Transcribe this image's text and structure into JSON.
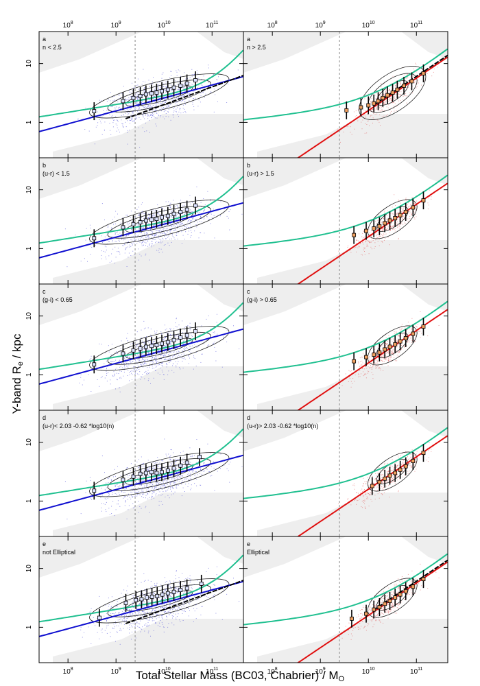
{
  "figure": {
    "xlabel": "Total Stellar Mass (BC03, Chabrier) / M",
    "xlabel_sub": "O",
    "ylabel": "Y-band   R",
    "ylabel_sub": "e",
    "ylabel_unit": " / kpc"
  },
  "colors": {
    "blue_points": "#3b3bd6",
    "red_points": "#e04040",
    "blue_fit": "#1010d0",
    "red_fit": "#e01010",
    "green_fit": "#20c090",
    "black_fit": "#000000",
    "shade": "#eeeeee",
    "marker_fill": "#f0a060"
  },
  "chart_data": {
    "type": "scatter",
    "xscale": "log",
    "yscale": "log",
    "xlim": [
      25000000,
      450000000000
    ],
    "ylim": [
      0.25,
      35
    ],
    "x_ticks": [
      "10^8",
      "10^9",
      "10^10",
      "10^11"
    ],
    "x_tick_values": [
      100000000,
      1000000000,
      10000000000,
      100000000000
    ],
    "y_ticks": [
      "1",
      "10"
    ],
    "y_tick_values": [
      1,
      10
    ],
    "mass_limit_x": 2500000000,
    "panels": [
      {
        "row": 0,
        "col": 0,
        "letter": "a",
        "label": "n < 2.5",
        "side": "blue",
        "black_fit": true,
        "bins": [
          {
            "x": 350000000,
            "y": 1.55
          },
          {
            "x": 1400000000,
            "y": 2.3
          },
          {
            "x": 2300000000,
            "y": 2.6
          },
          {
            "x": 3200000000,
            "y": 2.8
          },
          {
            "x": 4200000000,
            "y": 3.0
          },
          {
            "x": 5500000000,
            "y": 3.1
          },
          {
            "x": 7000000000,
            "y": 3.2
          },
          {
            "x": 9000000000,
            "y": 3.4
          },
          {
            "x": 12000000000,
            "y": 3.6
          },
          {
            "x": 16000000000,
            "y": 3.9
          },
          {
            "x": 22000000000,
            "y": 4.2
          },
          {
            "x": 30000000000,
            "y": 4.6
          },
          {
            "x": 45000000000,
            "y": 5.2
          }
        ]
      },
      {
        "row": 0,
        "col": 1,
        "letter": "a",
        "label": "n > 2.5",
        "side": "red",
        "black_fit": true,
        "bins": [
          {
            "x": 3500000000,
            "y": 1.6
          },
          {
            "x": 7000000000,
            "y": 1.8
          },
          {
            "x": 10000000000,
            "y": 1.95
          },
          {
            "x": 13000000000,
            "y": 2.1
          },
          {
            "x": 16000000000,
            "y": 2.3
          },
          {
            "x": 20000000000,
            "y": 2.6
          },
          {
            "x": 25000000000,
            "y": 2.9
          },
          {
            "x": 32000000000,
            "y": 3.2
          },
          {
            "x": 40000000000,
            "y": 3.6
          },
          {
            "x": 55000000000,
            "y": 4.2
          },
          {
            "x": 80000000000,
            "y": 5.0
          },
          {
            "x": 140000000000,
            "y": 6.8
          }
        ]
      },
      {
        "row": 1,
        "col": 0,
        "letter": "b",
        "label": "(u-r) < 1.5",
        "side": "blue",
        "black_fit": false,
        "bins": [
          {
            "x": 350000000,
            "y": 1.5
          },
          {
            "x": 1400000000,
            "y": 2.3
          },
          {
            "x": 2300000000,
            "y": 2.6
          },
          {
            "x": 3200000000,
            "y": 2.8
          },
          {
            "x": 4200000000,
            "y": 3.0
          },
          {
            "x": 5500000000,
            "y": 3.1
          },
          {
            "x": 7000000000,
            "y": 3.2
          },
          {
            "x": 9000000000,
            "y": 3.4
          },
          {
            "x": 12000000000,
            "y": 3.6
          },
          {
            "x": 16000000000,
            "y": 3.9
          },
          {
            "x": 22000000000,
            "y": 4.2
          },
          {
            "x": 30000000000,
            "y": 4.6
          },
          {
            "x": 45000000000,
            "y": 5.4
          }
        ]
      },
      {
        "row": 1,
        "col": 1,
        "letter": "b",
        "label": "(u-r) > 1.5",
        "side": "red",
        "black_fit": false,
        "bins": [
          {
            "x": 5000000000,
            "y": 1.7
          },
          {
            "x": 9000000000,
            "y": 2.0
          },
          {
            "x": 13000000000,
            "y": 2.2
          },
          {
            "x": 17000000000,
            "y": 2.4
          },
          {
            "x": 22000000000,
            "y": 2.7
          },
          {
            "x": 28000000000,
            "y": 3.0
          },
          {
            "x": 36000000000,
            "y": 3.3
          },
          {
            "x": 46000000000,
            "y": 3.7
          },
          {
            "x": 60000000000,
            "y": 4.2
          },
          {
            "x": 85000000000,
            "y": 5.0
          },
          {
            "x": 140000000000,
            "y": 6.6
          }
        ]
      },
      {
        "row": 2,
        "col": 0,
        "letter": "c",
        "label": "(g-i) < 0.65",
        "side": "blue",
        "black_fit": false,
        "bins": [
          {
            "x": 350000000,
            "y": 1.5
          },
          {
            "x": 1400000000,
            "y": 2.3
          },
          {
            "x": 2300000000,
            "y": 2.6
          },
          {
            "x": 3200000000,
            "y": 2.8
          },
          {
            "x": 4200000000,
            "y": 3.0
          },
          {
            "x": 5500000000,
            "y": 3.1
          },
          {
            "x": 7000000000,
            "y": 3.2
          },
          {
            "x": 9000000000,
            "y": 3.4
          },
          {
            "x": 12000000000,
            "y": 3.6
          },
          {
            "x": 16000000000,
            "y": 3.9
          },
          {
            "x": 22000000000,
            "y": 4.3
          },
          {
            "x": 30000000000,
            "y": 4.7
          },
          {
            "x": 45000000000,
            "y": 5.5
          }
        ]
      },
      {
        "row": 2,
        "col": 1,
        "letter": "c",
        "label": "(g-i) > 0.65",
        "side": "red",
        "black_fit": false,
        "bins": [
          {
            "x": 5000000000,
            "y": 1.7
          },
          {
            "x": 9000000000,
            "y": 2.0
          },
          {
            "x": 13000000000,
            "y": 2.2
          },
          {
            "x": 17000000000,
            "y": 2.4
          },
          {
            "x": 22000000000,
            "y": 2.7
          },
          {
            "x": 28000000000,
            "y": 3.0
          },
          {
            "x": 36000000000,
            "y": 3.3
          },
          {
            "x": 46000000000,
            "y": 3.7
          },
          {
            "x": 60000000000,
            "y": 4.2
          },
          {
            "x": 85000000000,
            "y": 5.0
          },
          {
            "x": 140000000000,
            "y": 6.6
          }
        ]
      },
      {
        "row": 3,
        "col": 0,
        "letter": "d",
        "label": "(u-r)< 2.03 -0.62 *log10(n)",
        "side": "blue",
        "black_fit": false,
        "bins": [
          {
            "x": 350000000,
            "y": 1.5
          },
          {
            "x": 1400000000,
            "y": 2.3
          },
          {
            "x": 2300000000,
            "y": 2.6
          },
          {
            "x": 3200000000,
            "y": 2.9
          },
          {
            "x": 4200000000,
            "y": 3.0
          },
          {
            "x": 5500000000,
            "y": 3.1
          },
          {
            "x": 7000000000,
            "y": 3.0
          },
          {
            "x": 9000000000,
            "y": 3.1
          },
          {
            "x": 12000000000,
            "y": 3.3
          },
          {
            "x": 16000000000,
            "y": 3.6
          },
          {
            "x": 22000000000,
            "y": 4.0
          },
          {
            "x": 30000000000,
            "y": 4.5
          },
          {
            "x": 55000000000,
            "y": 5.6
          }
        ]
      },
      {
        "row": 3,
        "col": 1,
        "letter": "d",
        "label": "(u-r)> 2.03 -0.62 *log10(n)",
        "side": "red",
        "black_fit": false,
        "bins": [
          {
            "x": 12000000000,
            "y": 1.8
          },
          {
            "x": 17000000000,
            "y": 2.1
          },
          {
            "x": 22000000000,
            "y": 2.4
          },
          {
            "x": 28000000000,
            "y": 2.7
          },
          {
            "x": 36000000000,
            "y": 3.0
          },
          {
            "x": 46000000000,
            "y": 3.4
          },
          {
            "x": 60000000000,
            "y": 3.9
          },
          {
            "x": 85000000000,
            "y": 4.8
          },
          {
            "x": 140000000000,
            "y": 6.6
          }
        ]
      },
      {
        "row": 4,
        "col": 0,
        "letter": "e",
        "label": "not Elliptical",
        "side": "blue",
        "black_fit": true,
        "bins": [
          {
            "x": 450000000,
            "y": 1.45
          },
          {
            "x": 1600000000,
            "y": 2.6
          },
          {
            "x": 2600000000,
            "y": 2.9
          },
          {
            "x": 3400000000,
            "y": 3.0
          },
          {
            "x": 4400000000,
            "y": 3.2
          },
          {
            "x": 5600000000,
            "y": 3.3
          },
          {
            "x": 7200000000,
            "y": 3.4
          },
          {
            "x": 9200000000,
            "y": 3.6
          },
          {
            "x": 12000000000,
            "y": 3.8
          },
          {
            "x": 16000000000,
            "y": 4.0
          },
          {
            "x": 22000000000,
            "y": 4.3
          },
          {
            "x": 30000000000,
            "y": 4.6
          },
          {
            "x": 60000000000,
            "y": 5.5
          }
        ]
      },
      {
        "row": 4,
        "col": 1,
        "letter": "e",
        "label": "Elliptical",
        "side": "red",
        "black_fit": true,
        "bins": [
          {
            "x": 4500000000,
            "y": 1.4
          },
          {
            "x": 9000000000,
            "y": 1.7
          },
          {
            "x": 13000000000,
            "y": 2.0
          },
          {
            "x": 17000000000,
            "y": 2.2
          },
          {
            "x": 22000000000,
            "y": 2.5
          },
          {
            "x": 28000000000,
            "y": 2.8
          },
          {
            "x": 36000000000,
            "y": 3.2
          },
          {
            "x": 46000000000,
            "y": 3.6
          },
          {
            "x": 60000000000,
            "y": 4.1
          },
          {
            "x": 85000000000,
            "y": 4.9
          },
          {
            "x": 140000000000,
            "y": 6.6
          }
        ]
      }
    ]
  }
}
